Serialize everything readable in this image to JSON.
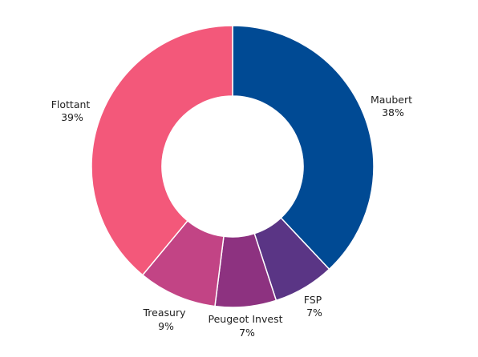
{
  "chart_data": {
    "type": "pie",
    "donut": true,
    "title": "",
    "slices": [
      {
        "name": "Maubert",
        "value": 38,
        "label": "38%",
        "color": "#004a94"
      },
      {
        "name": "FSP",
        "value": 7,
        "label": "7%",
        "color": "#5a3585"
      },
      {
        "name": "Peugeot Invest",
        "value": 7,
        "label": "7%",
        "color": "#8d3280"
      },
      {
        "name": "Treasury",
        "value": 9,
        "label": "9%",
        "color": "#c24485"
      },
      {
        "name": "Flottant",
        "value": 39,
        "label": "39%",
        "color": "#f3587a"
      }
    ]
  }
}
